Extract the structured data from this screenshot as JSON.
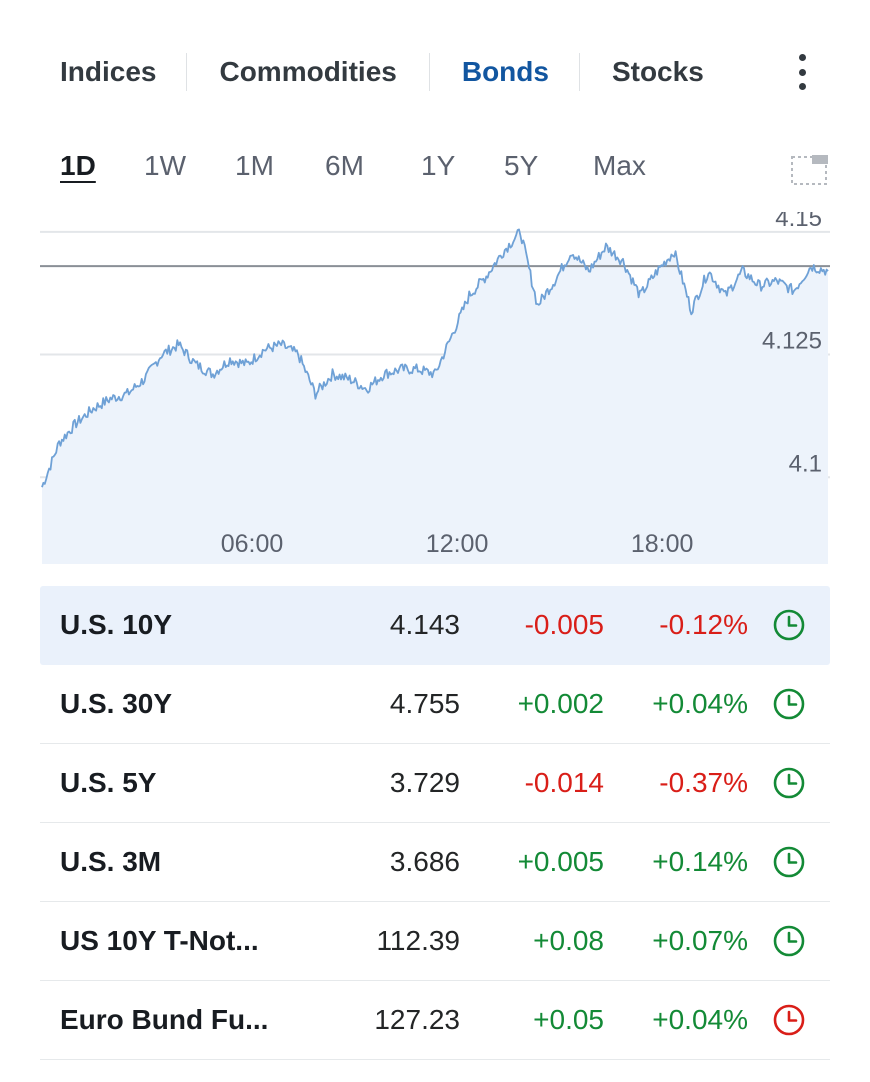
{
  "category_tabs": [
    {
      "label": "Indices",
      "active": false
    },
    {
      "label": "Commodities",
      "active": false
    },
    {
      "label": "Bonds",
      "active": true
    },
    {
      "label": "Stocks",
      "active": false
    }
  ],
  "range_tabs": [
    {
      "label": "1D",
      "active": true
    },
    {
      "label": "1W",
      "active": false
    },
    {
      "label": "1M",
      "active": false
    },
    {
      "label": "6M",
      "active": false
    },
    {
      "label": "1Y",
      "active": false
    },
    {
      "label": "5Y",
      "active": false
    },
    {
      "label": "Max",
      "active": false
    }
  ],
  "icons": {
    "more": "more-vertical-icon",
    "expand": "expand-chart-icon",
    "clock": "clock-icon"
  },
  "colors": {
    "active_tab": "#1256a0",
    "negative": "#d91e18",
    "positive": "#138a36",
    "line": "#6fa1d6",
    "area": "#edf3fb",
    "highlight_row": "#eaf1fb"
  },
  "chart_data": {
    "type": "area",
    "title": "",
    "xlabel": "",
    "ylabel": "",
    "x_ticks": [
      "06:00",
      "12:00",
      "18:00"
    ],
    "y_ticks": [
      "4.1",
      "4.125",
      "4.15"
    ],
    "ylim": [
      4.097,
      4.152
    ],
    "reference_value": 4.143,
    "grid": true,
    "series": [
      {
        "x": [
          "00:00",
          "00:30",
          "01:00",
          "01:30",
          "02:00",
          "02:30",
          "03:00",
          "03:30",
          "04:00",
          "04:30",
          "05:00",
          "05:30",
          "06:00",
          "06:30",
          "07:00",
          "07:30",
          "08:00",
          "08:30",
          "09:00",
          "09:30",
          "10:00",
          "10:30",
          "11:00",
          "11:30",
          "12:00",
          "12:30",
          "13:00",
          "13:30",
          "14:00",
          "14:30",
          "15:00",
          "15:30",
          "16:00",
          "16:30",
          "17:00",
          "17:30",
          "18:00",
          "18:30",
          "19:00",
          "19:30",
          "20:00",
          "20:30",
          "21:00",
          "21:30",
          "22:00",
          "22:30",
          "23:00"
        ],
        "values": [
          4.098,
          4.107,
          4.111,
          4.114,
          4.116,
          4.117,
          4.12,
          4.125,
          4.127,
          4.123,
          4.121,
          4.124,
          4.123,
          4.126,
          4.127,
          4.125,
          4.117,
          4.121,
          4.12,
          4.118,
          4.121,
          4.122,
          4.122,
          4.121,
          4.129,
          4.137,
          4.141,
          4.146,
          4.15,
          4.135,
          4.14,
          4.146,
          4.142,
          4.147,
          4.144,
          4.137,
          4.142,
          4.146,
          4.134,
          4.142,
          4.137,
          4.142,
          4.139,
          4.14,
          4.138,
          4.143,
          4.142
        ]
      }
    ]
  },
  "quotes": [
    {
      "name": "U.S. 10Y",
      "last": "4.143",
      "change": "-0.005",
      "pct": "-0.12%",
      "dir": "neg",
      "clock": "green",
      "highlight": true
    },
    {
      "name": "U.S. 30Y",
      "last": "4.755",
      "change": "+0.002",
      "pct": "+0.04%",
      "dir": "pos",
      "clock": "green",
      "highlight": false
    },
    {
      "name": "U.S. 5Y",
      "last": "3.729",
      "change": "-0.014",
      "pct": "-0.37%",
      "dir": "neg",
      "clock": "green",
      "highlight": false
    },
    {
      "name": "U.S. 3M",
      "last": "3.686",
      "change": "+0.005",
      "pct": "+0.14%",
      "dir": "pos",
      "clock": "green",
      "highlight": false
    },
    {
      "name": "US 10Y T-Not...",
      "last": "112.39",
      "change": "+0.08",
      "pct": "+0.07%",
      "dir": "pos",
      "clock": "green",
      "highlight": false
    },
    {
      "name": "Euro Bund Fu...",
      "last": "127.23",
      "change": "+0.05",
      "pct": "+0.04%",
      "dir": "pos",
      "clock": "red",
      "highlight": false
    }
  ]
}
